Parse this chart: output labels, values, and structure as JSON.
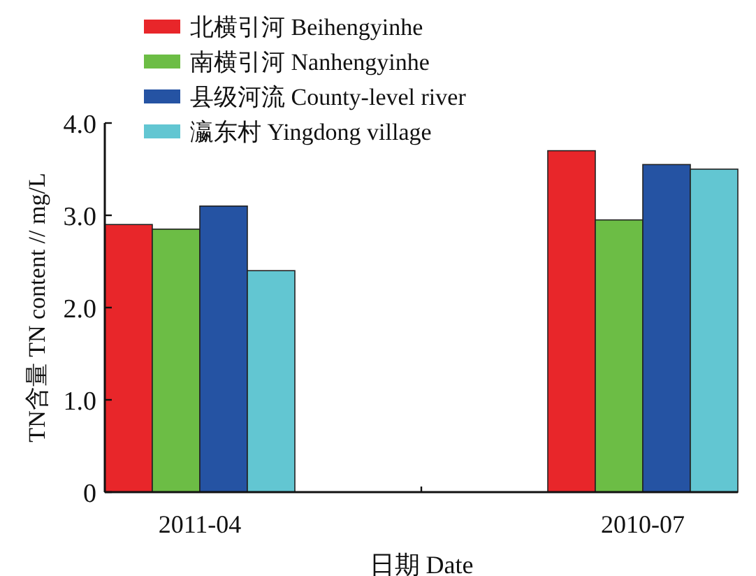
{
  "chart_data": {
    "type": "bar",
    "xlabel": "日期 Date",
    "ylabel": "TN含量 TN content // mg/L",
    "categories": [
      "2011-04",
      "2010-07"
    ],
    "series": [
      {
        "name": "北横引河 Beihengyinhe",
        "color": "#e8262a",
        "values": [
          2.9,
          3.7
        ]
      },
      {
        "name": "南横引河 Nanhengyinhe",
        "color": "#6cbd45",
        "values": [
          2.85,
          2.95
        ]
      },
      {
        "name": "县级河流 County-level river",
        "color": "#2553a3",
        "values": [
          3.1,
          3.55
        ]
      },
      {
        "name": "瀛东村 Yingdong village",
        "color": "#62c6d2",
        "values": [
          2.4,
          3.5
        ]
      }
    ],
    "ylim": [
      0,
      4
    ],
    "yticks": [
      0,
      {
        "value": 1,
        "label": "1.0"
      },
      {
        "value": 2,
        "label": "2.0"
      },
      {
        "value": 3,
        "label": "3.0"
      },
      {
        "value": 4,
        "label": "4.0"
      }
    ],
    "legend": "top left",
    "grid": false
  }
}
